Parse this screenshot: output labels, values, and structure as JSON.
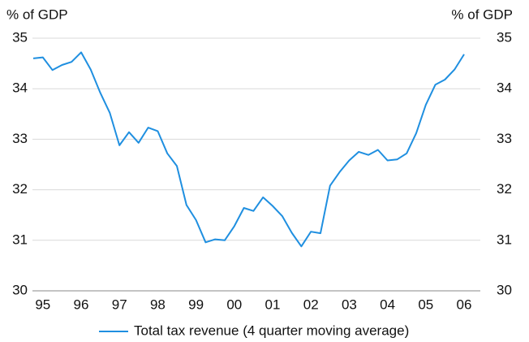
{
  "chart_data": {
    "type": "line",
    "ylabel": "% of GDP",
    "y2label": "% of GDP",
    "categories": [
      null,
      "95",
      null,
      null,
      null,
      "96",
      null,
      null,
      null,
      "97",
      null,
      null,
      null,
      "98",
      null,
      null,
      null,
      "99",
      null,
      null,
      null,
      "00",
      null,
      null,
      null,
      "01",
      null,
      null,
      null,
      "02",
      null,
      null,
      null,
      "03",
      null,
      null,
      null,
      "04",
      null,
      null,
      null,
      "05",
      null,
      null,
      null,
      "06"
    ],
    "series": [
      {
        "name": "Total tax revenue (4 quarter moving average)",
        "color": "#1f8fe0",
        "values": [
          34.6,
          34.62,
          34.37,
          34.47,
          34.53,
          34.72,
          34.38,
          33.92,
          33.52,
          32.88,
          33.14,
          32.93,
          33.23,
          33.16,
          32.72,
          32.47,
          31.7,
          31.4,
          30.96,
          31.02,
          31.0,
          31.28,
          31.64,
          31.58,
          31.85,
          31.68,
          31.48,
          31.15,
          30.88,
          31.17,
          31.14,
          32.08,
          32.35,
          32.58,
          32.75,
          32.69,
          32.79,
          32.58,
          32.6,
          32.72,
          33.12,
          33.68,
          34.08,
          34.18,
          34.38,
          34.68
        ]
      }
    ],
    "ylim": [
      30,
      35
    ],
    "yticks": [
      30,
      31,
      32,
      33,
      34,
      35
    ],
    "y2lim": [
      30,
      35
    ],
    "y2ticks": [
      30,
      31,
      32,
      33,
      34,
      35
    ],
    "grid": true,
    "legend": "bottom"
  }
}
